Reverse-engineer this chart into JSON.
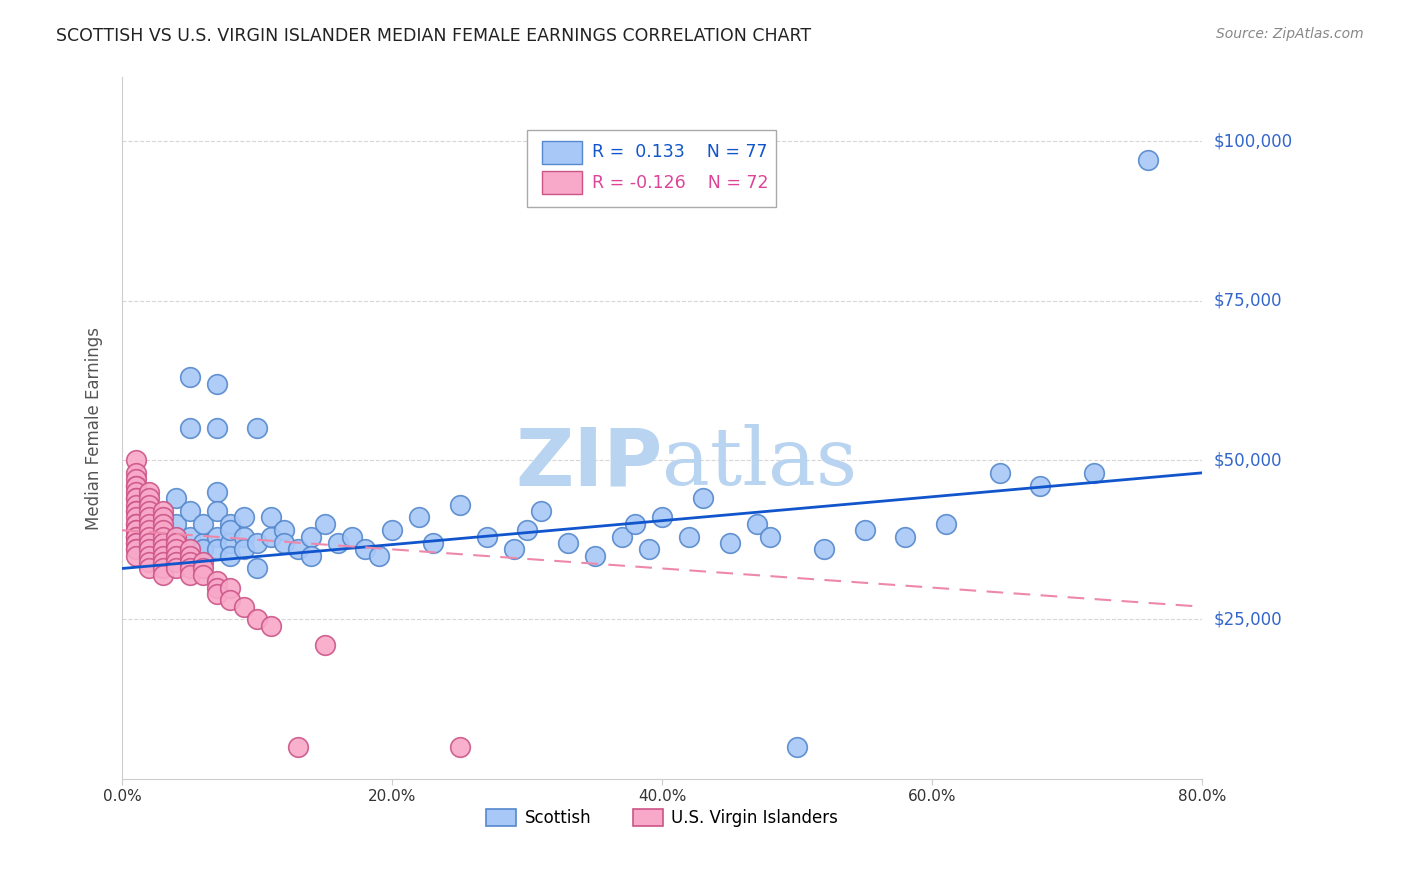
{
  "title": "SCOTTISH VS U.S. VIRGIN ISLANDER MEDIAN FEMALE EARNINGS CORRELATION CHART",
  "source": "Source: ZipAtlas.com",
  "ylabel": "Median Female Earnings",
  "xlabel_ticks": [
    "0.0%",
    "20.0%",
    "40.0%",
    "60.0%",
    "80.0%"
  ],
  "xlabel_vals": [
    0.0,
    0.2,
    0.4,
    0.6,
    0.8
  ],
  "ytick_labels": [
    "$25,000",
    "$50,000",
    "$75,000",
    "$100,000"
  ],
  "ytick_vals": [
    25000,
    50000,
    75000,
    100000
  ],
  "ylim": [
    0,
    110000
  ],
  "xlim": [
    0.0,
    0.8
  ],
  "r_scottish": 0.133,
  "n_scottish": 77,
  "r_virgin": -0.126,
  "n_virgin": 72,
  "scottish_color": "#a8c8f8",
  "scottish_edge": "#5588cc",
  "virgin_color": "#f8a8c8",
  "virgin_edge": "#cc5588",
  "trend_scottish_color": "#1155cc",
  "trend_virgin_color": "#ee88aa",
  "background_color": "#ffffff",
  "grid_color": "#cccccc",
  "title_color": "#222222",
  "right_label_color": "#3366cc",
  "scottish_x": [
    0.01,
    0.02,
    0.02,
    0.02,
    0.03,
    0.03,
    0.03,
    0.03,
    0.04,
    0.04,
    0.04,
    0.04,
    0.04,
    0.05,
    0.05,
    0.05,
    0.05,
    0.05,
    0.06,
    0.06,
    0.06,
    0.07,
    0.07,
    0.07,
    0.07,
    0.07,
    0.07,
    0.08,
    0.08,
    0.08,
    0.08,
    0.09,
    0.09,
    0.09,
    0.1,
    0.1,
    0.1,
    0.11,
    0.11,
    0.12,
    0.12,
    0.13,
    0.14,
    0.14,
    0.15,
    0.16,
    0.17,
    0.18,
    0.19,
    0.2,
    0.22,
    0.23,
    0.25,
    0.27,
    0.29,
    0.3,
    0.31,
    0.33,
    0.35,
    0.37,
    0.38,
    0.39,
    0.4,
    0.42,
    0.43,
    0.45,
    0.47,
    0.48,
    0.5,
    0.52,
    0.55,
    0.58,
    0.61,
    0.65,
    0.68,
    0.72,
    0.76
  ],
  "scottish_y": [
    38000,
    42000,
    36000,
    40000,
    37000,
    41000,
    39000,
    35000,
    38000,
    44000,
    36000,
    40000,
    37000,
    55000,
    63000,
    42000,
    38000,
    35000,
    37000,
    40000,
    36000,
    55000,
    62000,
    45000,
    38000,
    36000,
    42000,
    40000,
    37000,
    35000,
    39000,
    38000,
    36000,
    41000,
    37000,
    55000,
    33000,
    38000,
    41000,
    39000,
    37000,
    36000,
    38000,
    35000,
    40000,
    37000,
    38000,
    36000,
    35000,
    39000,
    41000,
    37000,
    43000,
    38000,
    36000,
    39000,
    42000,
    37000,
    35000,
    38000,
    40000,
    36000,
    41000,
    38000,
    44000,
    37000,
    40000,
    38000,
    5000,
    36000,
    39000,
    38000,
    40000,
    48000,
    46000,
    48000,
    97000
  ],
  "virgin_x": [
    0.01,
    0.01,
    0.01,
    0.01,
    0.01,
    0.01,
    0.01,
    0.01,
    0.01,
    0.01,
    0.01,
    0.01,
    0.01,
    0.01,
    0.01,
    0.01,
    0.01,
    0.01,
    0.01,
    0.01,
    0.01,
    0.01,
    0.01,
    0.02,
    0.02,
    0.02,
    0.02,
    0.02,
    0.02,
    0.02,
    0.02,
    0.02,
    0.02,
    0.02,
    0.02,
    0.02,
    0.03,
    0.03,
    0.03,
    0.03,
    0.03,
    0.03,
    0.03,
    0.03,
    0.03,
    0.03,
    0.03,
    0.04,
    0.04,
    0.04,
    0.04,
    0.04,
    0.04,
    0.05,
    0.05,
    0.05,
    0.05,
    0.05,
    0.06,
    0.06,
    0.06,
    0.07,
    0.07,
    0.07,
    0.08,
    0.08,
    0.09,
    0.1,
    0.11,
    0.13,
    0.15,
    0.25
  ],
  "virgin_y": [
    50000,
    48000,
    47000,
    46000,
    46000,
    45000,
    44000,
    44000,
    43000,
    42000,
    42000,
    41000,
    40000,
    40000,
    39000,
    39000,
    38000,
    38000,
    37000,
    37000,
    36000,
    36000,
    35000,
    45000,
    44000,
    43000,
    42000,
    41000,
    40000,
    39000,
    38000,
    37000,
    36000,
    35000,
    34000,
    33000,
    42000,
    41000,
    40000,
    39000,
    38000,
    37000,
    36000,
    35000,
    34000,
    33000,
    32000,
    38000,
    37000,
    36000,
    35000,
    34000,
    33000,
    36000,
    35000,
    34000,
    33000,
    32000,
    34000,
    33000,
    32000,
    31000,
    30000,
    29000,
    30000,
    28000,
    27000,
    25000,
    24000,
    5000,
    21000,
    5000
  ],
  "trend_scottish_x0": 0.0,
  "trend_scottish_x1": 0.8,
  "trend_scottish_y0": 33000,
  "trend_scottish_y1": 48000,
  "trend_virgin_x0": 0.0,
  "trend_virgin_x1": 0.8,
  "trend_virgin_y0": 39000,
  "trend_virgin_y1": 27000
}
